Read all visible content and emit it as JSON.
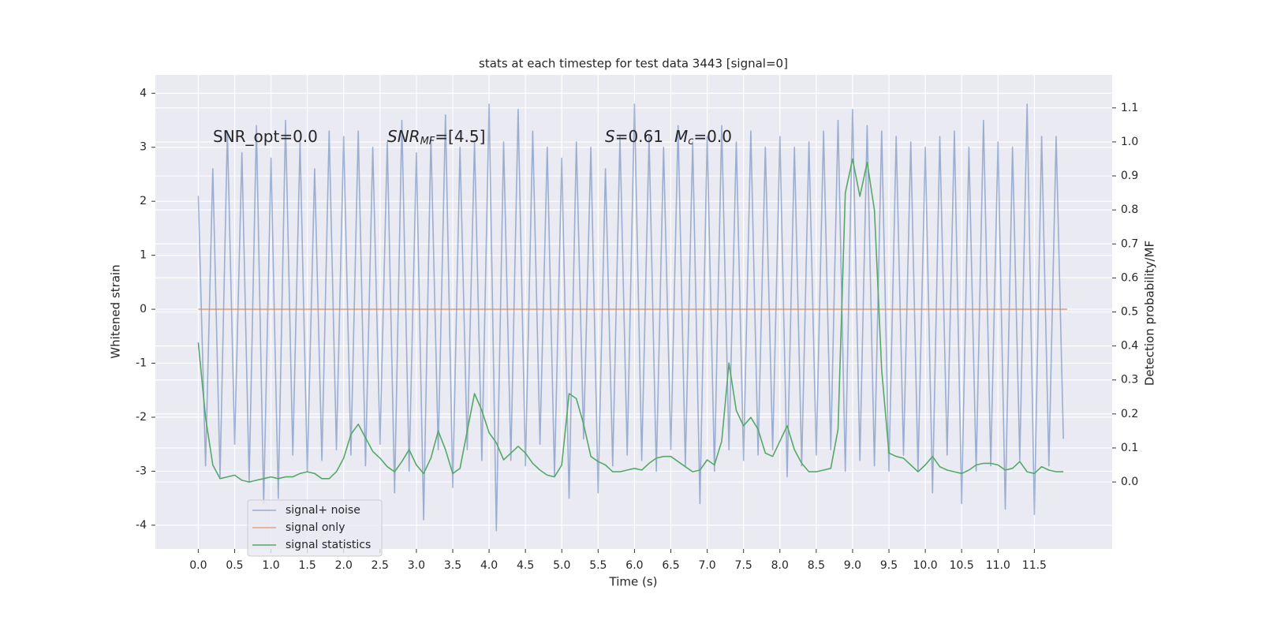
{
  "chart_data": {
    "type": "line",
    "title": "stats at each timestep for test data 3443 [signal=0]",
    "xlabel": "Time (s)",
    "ylabel": "Whitened strain",
    "y2label": "Detection probability/MF",
    "annotations": [
      [
        "SNR_opt=0.0"
      ],
      [
        "SNR",
        "MF",
        "=[4.5]"
      ],
      [
        "S",
        "=0.61",
        "M",
        "c",
        "=0.0"
      ]
    ],
    "x": [
      0.0,
      0.1,
      0.2,
      0.3,
      0.4,
      0.5,
      0.6,
      0.7,
      0.8,
      0.9,
      1.0,
      1.1,
      1.2,
      1.3,
      1.4,
      1.5,
      1.6,
      1.7,
      1.8,
      1.9,
      2.0,
      2.1,
      2.2,
      2.3,
      2.4,
      2.5,
      2.6,
      2.7,
      2.8,
      2.9,
      3.0,
      3.1,
      3.2,
      3.3,
      3.4,
      3.5,
      3.6,
      3.7,
      3.8,
      3.9,
      4.0,
      4.1,
      4.2,
      4.3,
      4.4,
      4.5,
      4.6,
      4.7,
      4.8,
      4.9,
      5.0,
      5.1,
      5.2,
      5.3,
      5.4,
      5.5,
      5.6,
      5.7,
      5.8,
      5.9,
      6.0,
      6.1,
      6.2,
      6.3,
      6.4,
      6.5,
      6.6,
      6.7,
      6.8,
      6.9,
      7.0,
      7.1,
      7.2,
      7.3,
      7.4,
      7.5,
      7.6,
      7.7,
      7.8,
      7.9,
      8.0,
      8.1,
      8.2,
      8.3,
      8.4,
      8.5,
      8.6,
      8.7,
      8.8,
      8.9,
      9.0,
      9.1,
      9.2,
      9.3,
      9.4,
      9.5,
      9.6,
      9.7,
      9.8,
      9.9,
      10.0,
      10.1,
      10.2,
      10.3,
      10.4,
      10.5,
      10.6,
      10.7,
      10.8,
      10.9,
      11.0,
      11.1,
      11.2,
      11.3,
      11.4,
      11.5,
      11.6,
      11.7,
      11.8,
      11.9
    ],
    "series": [
      {
        "name": "signal+ noise",
        "color": "#4c72b0",
        "opacity": 0.5,
        "axis": "y",
        "values": [
          2.1,
          -2.9,
          2.6,
          -3.1,
          3.3,
          -2.5,
          2.9,
          -3.2,
          3.4,
          -3.6,
          2.8,
          -3.5,
          3.5,
          -2.7,
          3.1,
          -3.0,
          2.6,
          -2.8,
          3.3,
          -2.6,
          3.2,
          -2.7,
          3.3,
          -2.9,
          3.0,
          -2.5,
          3.1,
          -3.4,
          3.5,
          -3.0,
          2.9,
          -3.9,
          3.2,
          -2.6,
          3.6,
          -3.3,
          3.0,
          -2.6,
          3.1,
          -2.8,
          3.8,
          -4.1,
          3.1,
          -2.8,
          3.7,
          -2.9,
          3.3,
          -2.5,
          3.0,
          -3.1,
          2.8,
          -3.5,
          3.1,
          -2.4,
          3.0,
          -3.4,
          2.6,
          -2.9,
          3.2,
          -2.7,
          3.8,
          -2.8,
          3.2,
          -3.0,
          3.0,
          -2.6,
          3.4,
          -2.9,
          3.1,
          -3.6,
          3.2,
          -3.0,
          3.4,
          -2.6,
          3.1,
          -2.8,
          3.3,
          -2.7,
          3.0,
          -2.6,
          3.2,
          -3.1,
          3.0,
          -2.9,
          3.1,
          -2.7,
          3.3,
          -2.6,
          3.5,
          -3.0,
          3.7,
          -2.8,
          3.4,
          -2.9,
          3.3,
          -3.0,
          3.2,
          -2.7,
          3.1,
          -3.0,
          3.0,
          -3.4,
          3.2,
          -2.7,
          3.3,
          -3.6,
          3.0,
          -3.0,
          3.5,
          -2.9,
          3.1,
          -3.7,
          3.0,
          -2.8,
          3.8,
          -3.8,
          3.2,
          -2.9,
          3.2,
          -2.4
        ]
      },
      {
        "name": "signal only",
        "color": "#dd8452",
        "opacity": 0.7,
        "axis": "y",
        "x": [
          0.0,
          11.95
        ],
        "values": [
          0,
          0
        ]
      },
      {
        "name": "signal statistics",
        "color": "#55a868",
        "opacity": 1,
        "axis": "y2",
        "values": [
          0.41,
          0.19,
          0.05,
          0.01,
          0.015,
          0.02,
          0.005,
          0.0,
          0.005,
          0.01,
          0.015,
          0.01,
          0.015,
          0.015,
          0.025,
          0.03,
          0.025,
          0.01,
          0.01,
          0.03,
          0.07,
          0.14,
          0.17,
          0.13,
          0.09,
          0.07,
          0.045,
          0.03,
          0.06,
          0.095,
          0.05,
          0.025,
          0.07,
          0.15,
          0.095,
          0.025,
          0.04,
          0.15,
          0.26,
          0.21,
          0.145,
          0.115,
          0.065,
          0.085,
          0.105,
          0.085,
          0.055,
          0.035,
          0.02,
          0.015,
          0.05,
          0.26,
          0.245,
          0.17,
          0.075,
          0.06,
          0.05,
          0.03,
          0.03,
          0.035,
          0.04,
          0.035,
          0.055,
          0.07,
          0.075,
          0.075,
          0.06,
          0.045,
          0.03,
          0.035,
          0.065,
          0.05,
          0.12,
          0.35,
          0.21,
          0.165,
          0.19,
          0.155,
          0.085,
          0.075,
          0.12,
          0.165,
          0.095,
          0.055,
          0.03,
          0.03,
          0.035,
          0.04,
          0.155,
          0.85,
          0.95,
          0.84,
          0.94,
          0.8,
          0.33,
          0.085,
          0.075,
          0.07,
          0.05,
          0.03,
          0.05,
          0.075,
          0.045,
          0.035,
          0.03,
          0.025,
          0.035,
          0.05,
          0.055,
          0.055,
          0.05,
          0.035,
          0.04,
          0.06,
          0.03,
          0.025,
          0.045,
          0.035,
          0.03,
          0.03
        ]
      }
    ],
    "xlim": [
      -0.59,
      12.57
    ],
    "ylim": [
      -4.44,
      4.34
    ],
    "y2lim": [
      -0.197,
      1.197
    ],
    "xticks": [
      {
        "value": 0,
        "label": "0.0"
      },
      0.5,
      {
        "value": 1,
        "label": "1.0"
      },
      1.5,
      {
        "value": 2,
        "label": "2.0"
      },
      2.5,
      {
        "value": 3,
        "label": "3.0"
      },
      3.5,
      {
        "value": 4,
        "label": "4.0"
      },
      4.5,
      {
        "value": 5,
        "label": "5.0"
      },
      5.5,
      {
        "value": 6,
        "label": "6.0"
      },
      6.5,
      {
        "value": 7,
        "label": "7.0"
      },
      7.5,
      {
        "value": 8,
        "label": "8.0"
      },
      8.5,
      {
        "value": 9,
        "label": "9.0"
      },
      9.5,
      {
        "value": 10,
        "label": "10.0"
      },
      10.5,
      {
        "value": 11,
        "label": "11.0"
      },
      11.5
    ],
    "yticks": [
      -4,
      -3,
      -2,
      -1,
      0,
      1,
      2,
      3,
      4
    ],
    "y2ticks": [
      {
        "value": 0,
        "label": "0.0"
      },
      0.1,
      0.2,
      0.3,
      0.4,
      0.5,
      0.6,
      0.7,
      0.8,
      0.9,
      {
        "value": 1,
        "label": "1.0"
      },
      1.1
    ],
    "grid": true,
    "legend": "lower left",
    "background": "#eaeaf2"
  }
}
